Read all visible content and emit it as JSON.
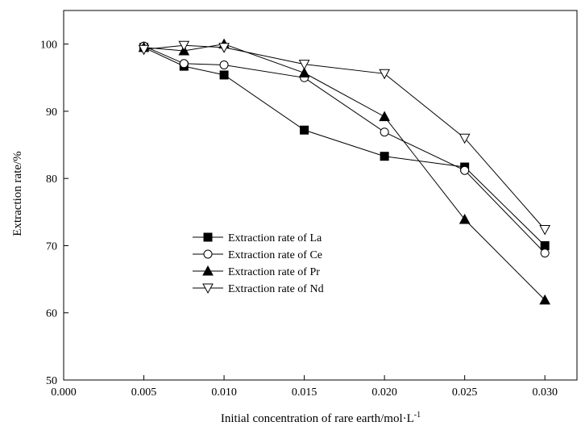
{
  "chart_data": {
    "type": "line",
    "title": "",
    "xlabel": "Initial concentration of rare earth/mol·L",
    "xlabel_superscript": "-1",
    "ylabel": "Extraction rate/%",
    "xlim": [
      0.0,
      0.032
    ],
    "ylim": [
      50,
      105
    ],
    "xticks": [
      "0.000",
      "0.005",
      "0.010",
      "0.015",
      "0.020",
      "0.025",
      "0.030"
    ],
    "yticks": [
      "50",
      "60",
      "70",
      "80",
      "90",
      "100"
    ],
    "grid": false,
    "legend_position": "center-left",
    "series": [
      {
        "name": "Extraction rate of La",
        "marker": "filled-square",
        "x": [
          0.005,
          0.0075,
          0.01,
          0.015,
          0.02,
          0.025,
          0.03
        ],
        "y": [
          99.5,
          96.7,
          95.4,
          87.2,
          83.3,
          81.7,
          70.0
        ]
      },
      {
        "name": "Extraction rate of Ce",
        "marker": "open-circle",
        "x": [
          0.005,
          0.0075,
          0.01,
          0.015,
          0.02,
          0.025,
          0.03
        ],
        "y": [
          99.7,
          97.1,
          96.9,
          95.0,
          86.9,
          81.2,
          68.9
        ]
      },
      {
        "name": "Extraction rate of Pr",
        "marker": "filled-triangle-up",
        "x": [
          0.005,
          0.0075,
          0.01,
          0.015,
          0.02,
          0.025,
          0.03
        ],
        "y": [
          99.5,
          99.0,
          100.0,
          95.7,
          89.2,
          73.9,
          61.9
        ]
      },
      {
        "name": "Extraction rate of Nd",
        "marker": "open-triangle-down",
        "x": [
          0.005,
          0.0075,
          0.01,
          0.015,
          0.02,
          0.025,
          0.03
        ],
        "y": [
          99.2,
          99.8,
          99.5,
          97.0,
          95.6,
          86.0,
          72.4
        ]
      }
    ],
    "colors": {
      "line": "#000000",
      "marker": "#000000",
      "background": "#ffffff"
    }
  }
}
